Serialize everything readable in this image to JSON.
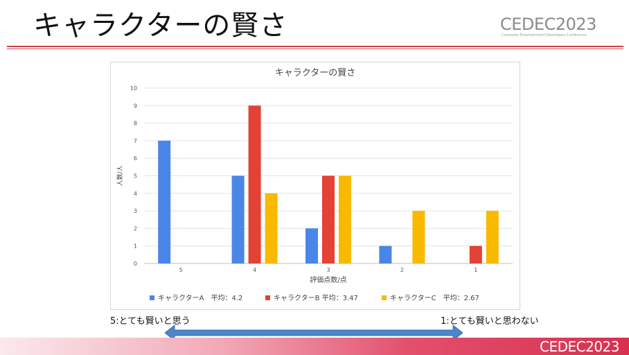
{
  "slide": {
    "title": "キャラクターの賢さ",
    "logo_text": "CEDEC2023",
    "logo_subtitle": "Computer Entertainment Developers Conference",
    "scale_left": "5:とても賢いと思う",
    "scale_right": "1:とても賢いと思わない",
    "footer_logo_text": "CEDEC2023"
  },
  "colors": {
    "accent": "#c8414b",
    "series_a": "#4a86e8",
    "series_b": "#e34234",
    "series_c": "#f9b900",
    "arrow": "#4a86c8"
  },
  "chart_data": {
    "type": "bar",
    "title": "キャラクターの賢さ",
    "xlabel": "評価点数/点",
    "ylabel": "人数/人",
    "categories": [
      "5",
      "4",
      "3",
      "2",
      "1"
    ],
    "ylim": [
      0,
      10
    ],
    "yticks": [
      0,
      1,
      2,
      3,
      4,
      5,
      6,
      7,
      8,
      9,
      10
    ],
    "grid": true,
    "legend_position": "bottom",
    "series": [
      {
        "name": "キャラクターA　平均：4.2",
        "values": [
          7,
          5,
          2,
          1,
          0
        ]
      },
      {
        "name": "キャラクターB 平均：3.47",
        "values": [
          0,
          9,
          5,
          0,
          1
        ]
      },
      {
        "name": "キャラクターC　平均：2.67",
        "values": [
          0,
          4,
          5,
          3,
          3
        ]
      }
    ]
  }
}
